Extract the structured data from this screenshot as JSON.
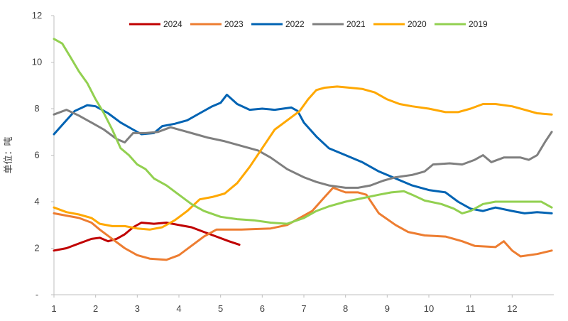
{
  "chart_data": {
    "type": "line",
    "title": "",
    "xlabel": "",
    "ylabel": "单位：吨",
    "xlim": [
      1,
      13
    ],
    "ylim": [
      0,
      12
    ],
    "x_ticks": [
      "1",
      "2",
      "3",
      "4",
      "5",
      "6",
      "7",
      "8",
      "9",
      "10",
      "11",
      "12"
    ],
    "y_ticks": [
      "-",
      "2",
      "4",
      "6",
      "8",
      "10",
      "12"
    ],
    "legend_position": "top",
    "series": [
      {
        "name": "2024",
        "color": "#c00000",
        "points": [
          [
            1.0,
            1.9
          ],
          [
            1.3,
            2.0
          ],
          [
            1.6,
            2.2
          ],
          [
            1.9,
            2.4
          ],
          [
            2.1,
            2.45
          ],
          [
            2.3,
            2.3
          ],
          [
            2.5,
            2.4
          ],
          [
            2.7,
            2.6
          ],
          [
            2.9,
            2.9
          ],
          [
            3.1,
            3.1
          ],
          [
            3.4,
            3.05
          ],
          [
            3.7,
            3.1
          ],
          [
            4.0,
            3.0
          ],
          [
            4.3,
            2.9
          ],
          [
            4.6,
            2.7
          ],
          [
            4.9,
            2.5
          ],
          [
            5.2,
            2.3
          ],
          [
            5.45,
            2.15
          ]
        ]
      },
      {
        "name": "2023",
        "color": "#ed7d31",
        "points": [
          [
            1.0,
            3.5
          ],
          [
            1.3,
            3.4
          ],
          [
            1.6,
            3.3
          ],
          [
            1.9,
            3.1
          ],
          [
            2.1,
            2.8
          ],
          [
            2.4,
            2.4
          ],
          [
            2.7,
            2.0
          ],
          [
            3.0,
            1.7
          ],
          [
            3.3,
            1.55
          ],
          [
            3.7,
            1.5
          ],
          [
            4.0,
            1.7
          ],
          [
            4.3,
            2.1
          ],
          [
            4.6,
            2.5
          ],
          [
            4.9,
            2.8
          ],
          [
            5.5,
            2.8
          ],
          [
            6.2,
            2.85
          ],
          [
            6.6,
            3.0
          ],
          [
            6.9,
            3.3
          ],
          [
            7.2,
            3.6
          ],
          [
            7.5,
            4.2
          ],
          [
            7.7,
            4.6
          ],
          [
            8.0,
            4.4
          ],
          [
            8.3,
            4.4
          ],
          [
            8.5,
            4.3
          ],
          [
            8.8,
            3.5
          ],
          [
            9.2,
            3.0
          ],
          [
            9.5,
            2.7
          ],
          [
            9.9,
            2.55
          ],
          [
            10.4,
            2.5
          ],
          [
            10.8,
            2.3
          ],
          [
            11.1,
            2.1
          ],
          [
            11.6,
            2.05
          ],
          [
            11.8,
            2.3
          ],
          [
            12.0,
            1.9
          ],
          [
            12.2,
            1.65
          ],
          [
            12.6,
            1.75
          ],
          [
            12.95,
            1.9
          ]
        ]
      },
      {
        "name": "2022",
        "color": "#0063b3",
        "points": [
          [
            1.0,
            6.9
          ],
          [
            1.2,
            7.3
          ],
          [
            1.5,
            7.9
          ],
          [
            1.8,
            8.15
          ],
          [
            2.0,
            8.1
          ],
          [
            2.3,
            7.8
          ],
          [
            2.6,
            7.4
          ],
          [
            2.9,
            7.1
          ],
          [
            3.1,
            6.9
          ],
          [
            3.4,
            6.95
          ],
          [
            3.6,
            7.25
          ],
          [
            3.9,
            7.35
          ],
          [
            4.2,
            7.5
          ],
          [
            4.5,
            7.8
          ],
          [
            4.8,
            8.1
          ],
          [
            5.0,
            8.25
          ],
          [
            5.15,
            8.6
          ],
          [
            5.4,
            8.2
          ],
          [
            5.7,
            7.95
          ],
          [
            6.0,
            8.0
          ],
          [
            6.3,
            7.95
          ],
          [
            6.7,
            8.05
          ],
          [
            6.85,
            7.9
          ],
          [
            7.0,
            7.4
          ],
          [
            7.3,
            6.8
          ],
          [
            7.6,
            6.3
          ],
          [
            8.0,
            6.0
          ],
          [
            8.4,
            5.7
          ],
          [
            8.8,
            5.3
          ],
          [
            9.2,
            5.0
          ],
          [
            9.6,
            4.7
          ],
          [
            10.0,
            4.5
          ],
          [
            10.4,
            4.4
          ],
          [
            10.7,
            4.0
          ],
          [
            11.0,
            3.7
          ],
          [
            11.3,
            3.6
          ],
          [
            11.6,
            3.75
          ],
          [
            12.0,
            3.6
          ],
          [
            12.3,
            3.5
          ],
          [
            12.6,
            3.55
          ],
          [
            12.95,
            3.5
          ]
        ]
      },
      {
        "name": "2021",
        "color": "#7f7f7f",
        "points": [
          [
            1.0,
            7.75
          ],
          [
            1.3,
            7.95
          ],
          [
            1.6,
            7.7
          ],
          [
            1.9,
            7.4
          ],
          [
            2.2,
            7.1
          ],
          [
            2.5,
            6.7
          ],
          [
            2.7,
            6.55
          ],
          [
            2.9,
            6.95
          ],
          [
            3.2,
            6.95
          ],
          [
            3.5,
            7.0
          ],
          [
            3.8,
            7.2
          ],
          [
            4.1,
            7.05
          ],
          [
            4.4,
            6.9
          ],
          [
            4.7,
            6.75
          ],
          [
            5.1,
            6.6
          ],
          [
            5.5,
            6.4
          ],
          [
            5.9,
            6.2
          ],
          [
            6.2,
            5.9
          ],
          [
            6.6,
            5.4
          ],
          [
            7.0,
            5.05
          ],
          [
            7.3,
            4.85
          ],
          [
            7.6,
            4.7
          ],
          [
            8.0,
            4.6
          ],
          [
            8.3,
            4.6
          ],
          [
            8.6,
            4.7
          ],
          [
            8.9,
            4.9
          ],
          [
            9.2,
            5.05
          ],
          [
            9.6,
            5.15
          ],
          [
            9.9,
            5.3
          ],
          [
            10.1,
            5.6
          ],
          [
            10.5,
            5.65
          ],
          [
            10.8,
            5.6
          ],
          [
            11.1,
            5.8
          ],
          [
            11.3,
            6.0
          ],
          [
            11.5,
            5.7
          ],
          [
            11.8,
            5.9
          ],
          [
            12.2,
            5.9
          ],
          [
            12.4,
            5.8
          ],
          [
            12.6,
            6.0
          ],
          [
            12.8,
            6.6
          ],
          [
            12.95,
            7.0
          ]
        ]
      },
      {
        "name": "2020",
        "color": "#ffa800",
        "points": [
          [
            1.0,
            3.75
          ],
          [
            1.3,
            3.55
          ],
          [
            1.6,
            3.45
          ],
          [
            1.9,
            3.3
          ],
          [
            2.1,
            3.05
          ],
          [
            2.4,
            2.95
          ],
          [
            2.7,
            2.95
          ],
          [
            3.0,
            2.85
          ],
          [
            3.3,
            2.8
          ],
          [
            3.6,
            2.9
          ],
          [
            3.9,
            3.2
          ],
          [
            4.2,
            3.6
          ],
          [
            4.5,
            4.1
          ],
          [
            4.8,
            4.2
          ],
          [
            5.1,
            4.35
          ],
          [
            5.4,
            4.8
          ],
          [
            5.7,
            5.5
          ],
          [
            6.0,
            6.3
          ],
          [
            6.3,
            7.1
          ],
          [
            6.6,
            7.5
          ],
          [
            6.9,
            7.9
          ],
          [
            7.1,
            8.4
          ],
          [
            7.3,
            8.8
          ],
          [
            7.5,
            8.9
          ],
          [
            7.8,
            8.95
          ],
          [
            8.1,
            8.9
          ],
          [
            8.4,
            8.85
          ],
          [
            8.7,
            8.7
          ],
          [
            9.0,
            8.4
          ],
          [
            9.3,
            8.2
          ],
          [
            9.6,
            8.1
          ],
          [
            10.0,
            8.0
          ],
          [
            10.4,
            7.85
          ],
          [
            10.7,
            7.85
          ],
          [
            11.0,
            8.0
          ],
          [
            11.3,
            8.2
          ],
          [
            11.6,
            8.2
          ],
          [
            12.0,
            8.1
          ],
          [
            12.3,
            7.95
          ],
          [
            12.6,
            7.8
          ],
          [
            12.95,
            7.75
          ]
        ]
      },
      {
        "name": "2019",
        "color": "#92d050",
        "points": [
          [
            1.0,
            11.0
          ],
          [
            1.2,
            10.8
          ],
          [
            1.4,
            10.2
          ],
          [
            1.6,
            9.6
          ],
          [
            1.8,
            9.1
          ],
          [
            2.0,
            8.4
          ],
          [
            2.2,
            7.8
          ],
          [
            2.4,
            7.1
          ],
          [
            2.6,
            6.3
          ],
          [
            2.8,
            6.0
          ],
          [
            3.0,
            5.6
          ],
          [
            3.2,
            5.4
          ],
          [
            3.4,
            5.0
          ],
          [
            3.7,
            4.7
          ],
          [
            4.0,
            4.3
          ],
          [
            4.3,
            3.9
          ],
          [
            4.6,
            3.6
          ],
          [
            5.0,
            3.35
          ],
          [
            5.4,
            3.25
          ],
          [
            5.8,
            3.2
          ],
          [
            6.2,
            3.1
          ],
          [
            6.6,
            3.05
          ],
          [
            7.0,
            3.3
          ],
          [
            7.3,
            3.6
          ],
          [
            7.6,
            3.8
          ],
          [
            8.0,
            4.0
          ],
          [
            8.4,
            4.15
          ],
          [
            8.8,
            4.3
          ],
          [
            9.1,
            4.4
          ],
          [
            9.4,
            4.45
          ],
          [
            9.6,
            4.3
          ],
          [
            9.9,
            4.05
          ],
          [
            10.3,
            3.9
          ],
          [
            10.6,
            3.7
          ],
          [
            10.8,
            3.5
          ],
          [
            11.0,
            3.6
          ],
          [
            11.3,
            3.9
          ],
          [
            11.6,
            4.0
          ],
          [
            12.0,
            4.0
          ],
          [
            12.4,
            4.0
          ],
          [
            12.7,
            4.0
          ],
          [
            12.95,
            3.75
          ]
        ]
      }
    ]
  }
}
